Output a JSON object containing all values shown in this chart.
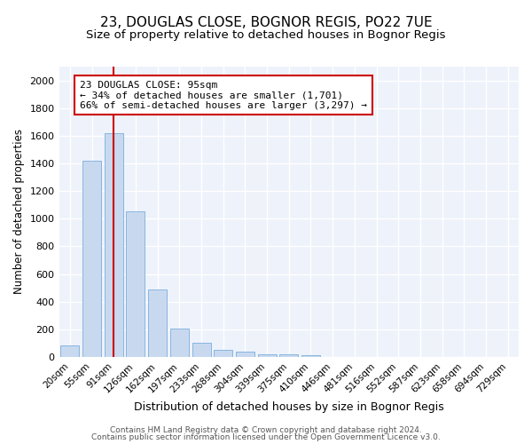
{
  "title": "23, DOUGLAS CLOSE, BOGNOR REGIS, PO22 7UE",
  "subtitle": "Size of property relative to detached houses in Bognor Regis",
  "xlabel": "Distribution of detached houses by size in Bognor Regis",
  "ylabel": "Number of detached properties",
  "categories": [
    "20sqm",
    "55sqm",
    "91sqm",
    "126sqm",
    "162sqm",
    "197sqm",
    "233sqm",
    "268sqm",
    "304sqm",
    "339sqm",
    "375sqm",
    "410sqm",
    "446sqm",
    "481sqm",
    "516sqm",
    "552sqm",
    "587sqm",
    "623sqm",
    "658sqm",
    "694sqm",
    "729sqm"
  ],
  "values": [
    80,
    1420,
    1620,
    1050,
    490,
    205,
    105,
    48,
    35,
    22,
    20,
    15,
    0,
    0,
    0,
    0,
    0,
    0,
    0,
    0,
    0
  ],
  "bar_color": "#c8d9ef",
  "bar_edge_color": "#7aaedc",
  "vline_color": "#cc0000",
  "annotation_text": "23 DOUGLAS CLOSE: 95sqm\n← 34% of detached houses are smaller (1,701)\n66% of semi-detached houses are larger (3,297) →",
  "annotation_box_facecolor": "#ffffff",
  "annotation_box_edgecolor": "#cc0000",
  "ylim": [
    0,
    2100
  ],
  "yticks": [
    0,
    200,
    400,
    600,
    800,
    1000,
    1200,
    1400,
    1600,
    1800,
    2000
  ],
  "footer_line1": "Contains HM Land Registry data © Crown copyright and database right 2024.",
  "footer_line2": "Contains public sector information licensed under the Open Government Licence v3.0.",
  "plot_bg_color": "#eef2fb",
  "grid_color": "#ffffff",
  "title_fontsize": 11,
  "subtitle_fontsize": 9.5,
  "tick_fontsize": 7.5,
  "ylabel_fontsize": 8.5,
  "xlabel_fontsize": 9,
  "annotation_fontsize": 8,
  "footer_fontsize": 6.5
}
